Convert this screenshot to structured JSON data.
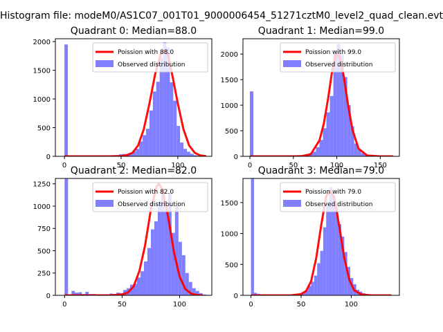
{
  "figure": {
    "suptitle": "Histogram file: modeM0/AS1C07_001T01_9000006454_51271cztM0_level2_quad_clean.evt"
  },
  "colors": {
    "hist": "#7f7fff",
    "poisson": "#ff0000",
    "axis": "#000000"
  },
  "chart_data": [
    {
      "type": "bar",
      "title": "Quadrant 0: Median=88.0",
      "median": 88.0,
      "xlim": [
        -8,
        130
      ],
      "ylim": [
        0,
        2050
      ],
      "xticks": [
        0,
        50,
        100
      ],
      "yticks": [
        0,
        500,
        1000,
        1500,
        2000
      ],
      "legend": [
        "Poission with 88.0",
        "Observed distribution"
      ],
      "legend_position": "upper right",
      "bin_width": 3,
      "hist_x": [
        0,
        3,
        6,
        9,
        12,
        15,
        18,
        21,
        24,
        27,
        30,
        33,
        36,
        39,
        42,
        45,
        48,
        51,
        54,
        57,
        60,
        63,
        66,
        69,
        72,
        75,
        78,
        81,
        84,
        87,
        90,
        93,
        96,
        99,
        102,
        105,
        108,
        111,
        114,
        117,
        120,
        123
      ],
      "hist_y": [
        1950,
        15,
        12,
        10,
        8,
        6,
        6,
        5,
        5,
        5,
        6,
        6,
        8,
        10,
        18,
        20,
        35,
        40,
        40,
        60,
        90,
        130,
        260,
        370,
        480,
        800,
        1130,
        1300,
        1720,
        1990,
        1900,
        1290,
        970,
        530,
        240,
        130,
        80,
        45,
        20,
        10,
        4,
        2
      ],
      "curve_x": [
        0,
        40,
        50,
        55,
        60,
        65,
        70,
        75,
        80,
        85,
        88,
        91,
        95,
        100,
        105,
        110,
        115,
        120,
        125
      ],
      "curve_y": [
        0,
        0,
        5,
        20,
        60,
        190,
        470,
        920,
        1430,
        1790,
        1840,
        1790,
        1430,
        920,
        470,
        190,
        60,
        15,
        3
      ]
    },
    {
      "type": "bar",
      "title": "Quadrant 1: Median=99.0",
      "median": 99.0,
      "xlim": [
        -8,
        172
      ],
      "ylim": [
        0,
        2300
      ],
      "xticks": [
        0,
        50,
        100,
        150
      ],
      "yticks": [
        0,
        500,
        1000,
        1500,
        2000
      ],
      "legend": [
        "Poission with 99.0",
        "Observed distribution"
      ],
      "legend_position": "upper right",
      "bin_width": 4,
      "hist_x": [
        0,
        4,
        8,
        12,
        16,
        20,
        24,
        28,
        32,
        36,
        40,
        44,
        48,
        52,
        56,
        60,
        64,
        68,
        72,
        76,
        80,
        84,
        88,
        92,
        96,
        100,
        104,
        108,
        112,
        116,
        120,
        124,
        128,
        132,
        136,
        140,
        144,
        148,
        152,
        156,
        160,
        164
      ],
      "hist_y": [
        1270,
        15,
        10,
        8,
        6,
        5,
        5,
        5,
        5,
        5,
        5,
        6,
        8,
        10,
        15,
        20,
        30,
        60,
        90,
        180,
        320,
        550,
        860,
        1180,
        2000,
        2200,
        1980,
        1550,
        1000,
        590,
        250,
        130,
        60,
        30,
        15,
        8,
        5,
        3,
        2,
        2,
        1,
        1
      ],
      "curve_x": [
        0,
        50,
        60,
        70,
        80,
        85,
        90,
        95,
        99,
        103,
        108,
        113,
        118,
        125,
        135,
        150,
        165
      ],
      "curve_y": [
        0,
        0,
        5,
        40,
        310,
        640,
        1130,
        1710,
        1990,
        1960,
        1570,
        1000,
        520,
        150,
        15,
        0,
        0
      ]
    },
    {
      "type": "bar",
      "title": "Quadrant 2: Median=82.0",
      "median": 82.0,
      "xlim": [
        -8,
        128
      ],
      "ylim": [
        0,
        1310
      ],
      "xticks": [
        0,
        50,
        100
      ],
      "yticks": [
        0,
        250,
        500,
        750,
        1000,
        1250
      ],
      "legend": [
        "Poission with 82.0",
        "Observed distribution"
      ],
      "legend_position": "upper right",
      "bin_width": 3,
      "hist_x": [
        0,
        3,
        6,
        9,
        12,
        15,
        18,
        21,
        24,
        27,
        30,
        33,
        36,
        39,
        42,
        45,
        48,
        51,
        54,
        57,
        60,
        63,
        66,
        69,
        72,
        75,
        78,
        81,
        84,
        87,
        90,
        93,
        96,
        99,
        102,
        105,
        108,
        111,
        114,
        117,
        120,
        123
      ],
      "hist_y": [
        1310,
        10,
        50,
        30,
        35,
        15,
        40,
        15,
        15,
        10,
        10,
        10,
        10,
        20,
        15,
        30,
        25,
        60,
        80,
        120,
        130,
        200,
        270,
        380,
        530,
        740,
        830,
        1050,
        1200,
        950,
        1150,
        700,
        1000,
        600,
        450,
        250,
        150,
        80,
        50,
        25,
        10,
        5
      ],
      "curve_x": [
        0,
        40,
        50,
        55,
        60,
        65,
        70,
        75,
        80,
        82,
        85,
        90,
        95,
        100,
        105,
        110,
        115,
        120
      ],
      "curve_y": [
        0,
        0,
        10,
        30,
        100,
        270,
        560,
        960,
        1220,
        1250,
        1190,
        880,
        490,
        210,
        70,
        20,
        5,
        0
      ]
    },
    {
      "type": "bar",
      "title": "Quadrant 3: Median=79.0",
      "median": 79.0,
      "xlim": [
        -8,
        148
      ],
      "ylim": [
        0,
        1890
      ],
      "xticks": [
        0,
        50,
        100
      ],
      "yticks": [
        0,
        500,
        1000,
        1500
      ],
      "legend": [
        "Poission with 79.0",
        "Observed distribution"
      ],
      "legend_position": "upper right",
      "bin_width": 3,
      "hist_x": [
        0,
        3,
        6,
        9,
        12,
        15,
        18,
        21,
        24,
        27,
        30,
        33,
        36,
        39,
        42,
        45,
        48,
        51,
        54,
        57,
        60,
        63,
        66,
        69,
        72,
        75,
        78,
        81,
        84,
        87,
        90,
        93,
        96,
        99,
        102,
        105,
        108,
        111,
        114,
        117,
        120,
        123,
        126,
        129,
        132,
        135,
        138
      ],
      "hist_y": [
        1890,
        40,
        25,
        15,
        10,
        10,
        8,
        8,
        8,
        6,
        6,
        6,
        8,
        10,
        15,
        20,
        30,
        50,
        80,
        150,
        220,
        320,
        520,
        720,
        1100,
        1450,
        1750,
        1600,
        1400,
        1150,
        950,
        700,
        460,
        280,
        180,
        90,
        60,
        35,
        20,
        10,
        5,
        3,
        2,
        1,
        1,
        1,
        1
      ],
      "curve_x": [
        0,
        40,
        50,
        55,
        60,
        65,
        70,
        75,
        79,
        83,
        88,
        93,
        98,
        103,
        110,
        120,
        140
      ],
      "curve_y": [
        0,
        0,
        20,
        70,
        230,
        600,
        1130,
        1600,
        1690,
        1590,
        1120,
        610,
        250,
        80,
        15,
        0,
        0
      ]
    }
  ]
}
